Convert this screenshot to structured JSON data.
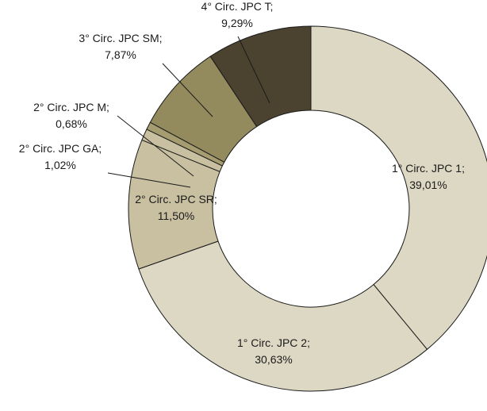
{
  "chart_data": {
    "type": "pie",
    "variant": "doughnut",
    "slices": [
      {
        "name": "1° Circ. JPC 1",
        "value": 39.01,
        "label_name": "1° Circ. JPC 1;",
        "label_value": "39,01%",
        "color": "#ddd8c3"
      },
      {
        "name": "1° Circ. JPC 2",
        "value": 30.63,
        "label_name": "1° Circ. JPC 2;",
        "label_value": "30,63%",
        "color": "#ddd8c3"
      },
      {
        "name": "2° Circ. JPC SR",
        "value": 11.5,
        "label_name": "2° Circ. JPC SR;",
        "label_value": "11,50%",
        "color": "#c9c0a1"
      },
      {
        "name": "2° Circ. JPC GA",
        "value": 1.02,
        "label_name": "2° Circ. JPC GA;",
        "label_value": "1,02%",
        "color": "#c9c0a1"
      },
      {
        "name": "2° Circ. JPC M",
        "value": 0.68,
        "label_name": "2° Circ. JPC M;",
        "label_value": "0,68%",
        "color": "#a59c70"
      },
      {
        "name": "3° Circ. JPC SM",
        "value": 7.87,
        "label_name": "3° Circ. JPC SM;",
        "label_value": "7,87%",
        "color": "#938a5d"
      },
      {
        "name": "4° Circ. JPC T",
        "value": 9.29,
        "label_name": "4° Circ. JPC T;",
        "label_value": "9,29%",
        "color": "#4b4330"
      }
    ],
    "legend": "none",
    "data_labels": "on"
  }
}
